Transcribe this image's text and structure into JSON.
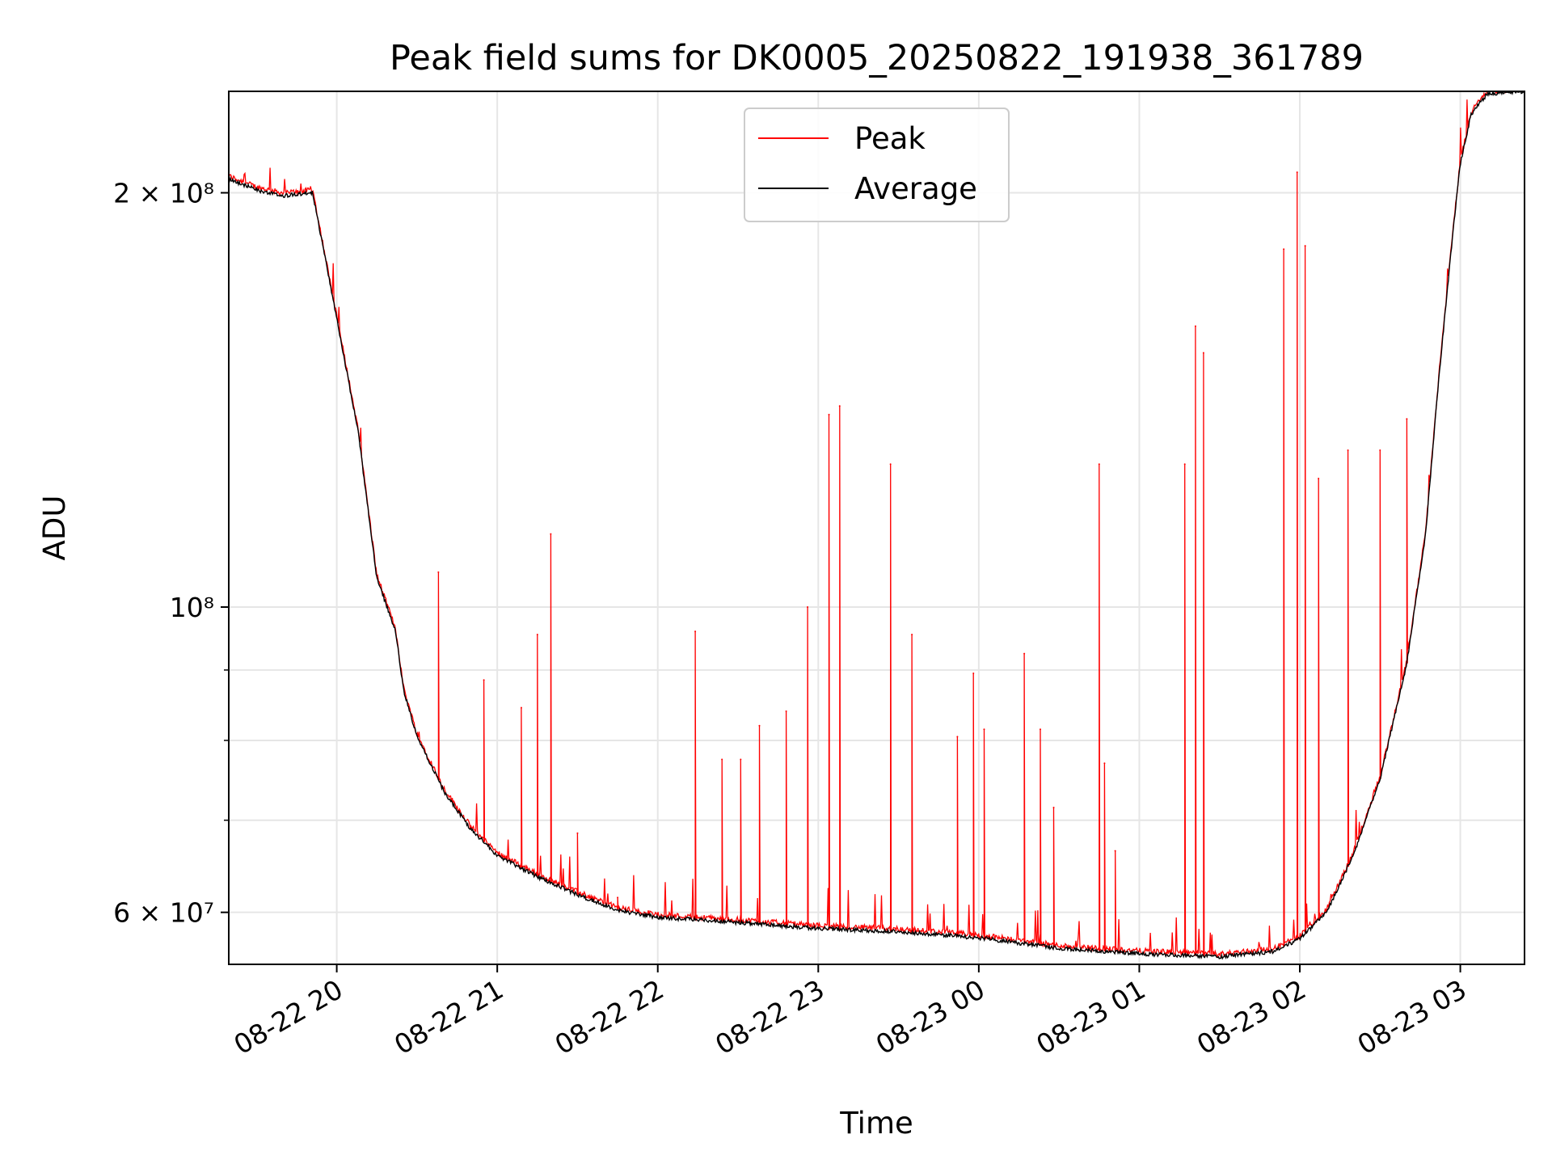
{
  "chart_data": {
    "type": "line",
    "title": "Peak field sums for DK0005_20250822_191938_361789",
    "xlabel": "Time",
    "ylabel": "ADU",
    "yscale": "log",
    "xlim": [
      "2025-08-22 19:19:38",
      "2025-08-23 03:24:00"
    ],
    "ylim": [
      55000000,
      237000000
    ],
    "grid": true,
    "legend_position": "upper center",
    "x_ticks": [
      {
        "x": "2025-08-22 20:00",
        "label": "08-22 20"
      },
      {
        "x": "2025-08-22 21:00",
        "label": "08-22 21"
      },
      {
        "x": "2025-08-22 22:00",
        "label": "08-22 22"
      },
      {
        "x": "2025-08-22 23:00",
        "label": "08-22 23"
      },
      {
        "x": "2025-08-23 00:00",
        "label": "08-23 00"
      },
      {
        "x": "2025-08-23 01:00",
        "label": "08-23 01"
      },
      {
        "x": "2025-08-23 02:00",
        "label": "08-23 02"
      },
      {
        "x": "2025-08-23 03:00",
        "label": "08-23 03"
      }
    ],
    "y_ticks": [
      {
        "y": 60000000,
        "label": "6 × 10⁷"
      },
      {
        "y": 100000000,
        "label": "10⁸"
      },
      {
        "y": 200000000,
        "label": "2 × 10⁸"
      }
    ],
    "y_minor_gridlines": [
      70000000,
      80000000,
      90000000
    ],
    "series": [
      {
        "name": "Peak",
        "color": "#ff0000",
        "spikes": [
          {
            "x": "2025-08-22 20:38",
            "y": 106000000
          },
          {
            "x": "2025-08-22 20:55",
            "y": 88500000
          },
          {
            "x": "2025-08-22 21:09",
            "y": 84500000
          },
          {
            "x": "2025-08-22 21:15",
            "y": 95500000
          },
          {
            "x": "2025-08-22 21:20",
            "y": 113000000
          },
          {
            "x": "2025-08-22 21:30",
            "y": 68500000
          },
          {
            "x": "2025-08-22 21:45",
            "y": 61500000
          },
          {
            "x": "2025-08-22 22:14",
            "y": 96000000
          },
          {
            "x": "2025-08-22 22:24",
            "y": 77500000
          },
          {
            "x": "2025-08-22 22:31",
            "y": 77500000
          },
          {
            "x": "2025-08-22 22:38",
            "y": 82000000
          },
          {
            "x": "2025-08-22 22:48",
            "y": 84000000
          },
          {
            "x": "2025-08-22 22:56",
            "y": 100000000
          },
          {
            "x": "2025-08-22 23:04",
            "y": 138000000
          },
          {
            "x": "2025-08-22 23:08",
            "y": 140000000
          },
          {
            "x": "2025-08-22 23:27",
            "y": 127000000
          },
          {
            "x": "2025-08-22 23:35",
            "y": 95500000
          },
          {
            "x": "2025-08-22 23:52",
            "y": 80500000
          },
          {
            "x": "2025-08-22 23:58",
            "y": 89500000
          },
          {
            "x": "2025-08-23 00:02",
            "y": 81500000
          },
          {
            "x": "2025-08-23 00:17",
            "y": 92500000
          },
          {
            "x": "2025-08-23 00:23",
            "y": 81500000
          },
          {
            "x": "2025-08-23 00:28",
            "y": 71500000
          },
          {
            "x": "2025-08-23 00:45",
            "y": 127000000
          },
          {
            "x": "2025-08-23 00:47",
            "y": 77000000
          },
          {
            "x": "2025-08-23 00:51",
            "y": 66500000
          },
          {
            "x": "2025-08-23 01:17",
            "y": 127000000
          },
          {
            "x": "2025-08-23 01:21",
            "y": 160000000
          },
          {
            "x": "2025-08-23 01:24",
            "y": 153000000
          },
          {
            "x": "2025-08-23 01:54",
            "y": 182000000
          },
          {
            "x": "2025-08-23 01:59",
            "y": 207000000
          },
          {
            "x": "2025-08-23 02:02",
            "y": 183000000
          },
          {
            "x": "2025-08-23 02:07",
            "y": 124000000
          },
          {
            "x": "2025-08-23 02:18",
            "y": 130000000
          },
          {
            "x": "2025-08-23 02:30",
            "y": 130000000
          },
          {
            "x": "2025-08-23 02:40",
            "y": 137000000
          }
        ]
      },
      {
        "name": "Average",
        "color": "#000000",
        "points": [
          {
            "x": "2025-08-22 19:19",
            "y": 205000000
          },
          {
            "x": "2025-08-22 19:30",
            "y": 201000000
          },
          {
            "x": "2025-08-22 19:40",
            "y": 199000000
          },
          {
            "x": "2025-08-22 19:51",
            "y": 200000000
          },
          {
            "x": "2025-08-22 20:00",
            "y": 162000000
          },
          {
            "x": "2025-08-22 20:08",
            "y": 134000000
          },
          {
            "x": "2025-08-22 20:15",
            "y": 105000000
          },
          {
            "x": "2025-08-22 20:22",
            "y": 96000000
          },
          {
            "x": "2025-08-22 20:25",
            "y": 87000000
          },
          {
            "x": "2025-08-22 20:30",
            "y": 80500000
          },
          {
            "x": "2025-08-22 20:40",
            "y": 73500000
          },
          {
            "x": "2025-08-22 20:50",
            "y": 69000000
          },
          {
            "x": "2025-08-22 21:00",
            "y": 66000000
          },
          {
            "x": "2025-08-22 21:15",
            "y": 63700000
          },
          {
            "x": "2025-08-22 21:30",
            "y": 61800000
          },
          {
            "x": "2025-08-22 21:45",
            "y": 60200000
          },
          {
            "x": "2025-08-22 22:00",
            "y": 59500000
          },
          {
            "x": "2025-08-22 22:30",
            "y": 59000000
          },
          {
            "x": "2025-08-22 23:00",
            "y": 58400000
          },
          {
            "x": "2025-08-22 23:30",
            "y": 58100000
          },
          {
            "x": "2025-08-23 00:00",
            "y": 57500000
          },
          {
            "x": "2025-08-23 00:30",
            "y": 56500000
          },
          {
            "x": "2025-08-23 01:00",
            "y": 56000000
          },
          {
            "x": "2025-08-23 01:30",
            "y": 55700000
          },
          {
            "x": "2025-08-23 01:50",
            "y": 56200000
          },
          {
            "x": "2025-08-23 02:00",
            "y": 57400000
          },
          {
            "x": "2025-08-23 02:10",
            "y": 60000000
          },
          {
            "x": "2025-08-23 02:20",
            "y": 66000000
          },
          {
            "x": "2025-08-23 02:30",
            "y": 75000000
          },
          {
            "x": "2025-08-23 02:40",
            "y": 91000000
          },
          {
            "x": "2025-08-23 02:47",
            "y": 113000000
          },
          {
            "x": "2025-08-23 02:52",
            "y": 147000000
          },
          {
            "x": "2025-08-23 02:57",
            "y": 185000000
          },
          {
            "x": "2025-08-23 03:00",
            "y": 210000000
          },
          {
            "x": "2025-08-23 03:04",
            "y": 228000000
          },
          {
            "x": "2025-08-23 03:10",
            "y": 236000000
          },
          {
            "x": "2025-08-23 03:24",
            "y": 237000000
          }
        ]
      }
    ]
  }
}
